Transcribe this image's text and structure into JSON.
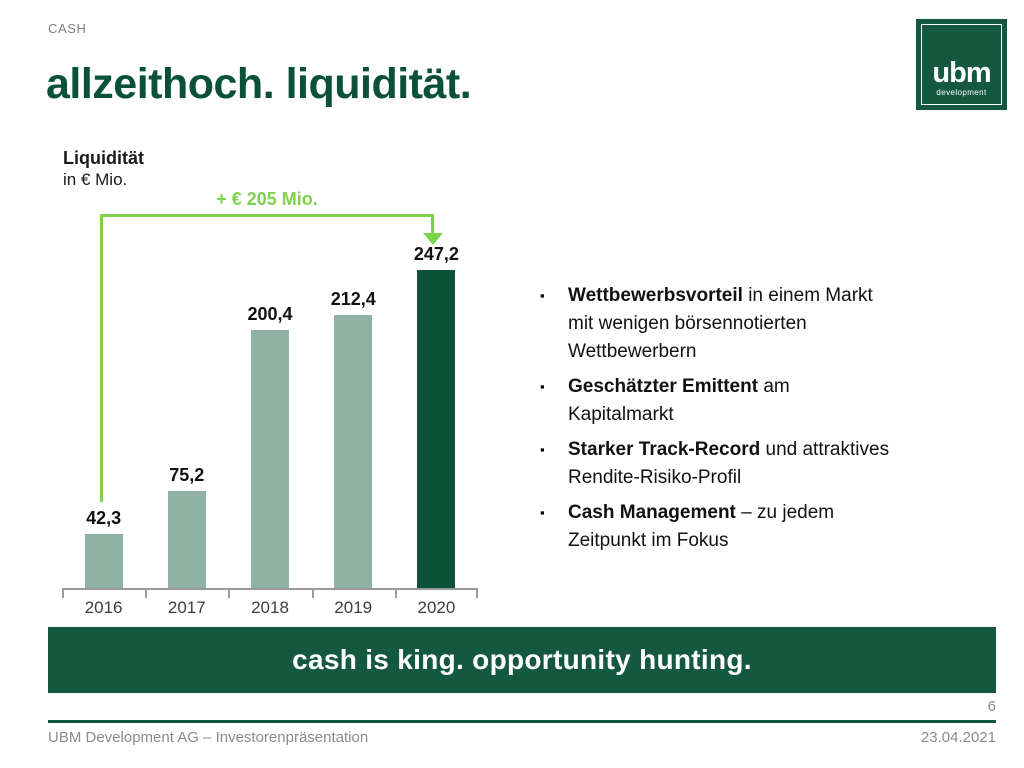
{
  "slide": {
    "eyebrow": "CASH",
    "title": "allzeithoch. liquidität.",
    "banner": "cash is king. opportunity hunting.",
    "page_number": "6",
    "footer_left": "UBM Development AG – Investorenpräsentation",
    "footer_right": "23.04.2021"
  },
  "logo": {
    "text": "ubm",
    "subtext": "development"
  },
  "chart_data": {
    "type": "bar",
    "title": "Liquidität",
    "subtitle": "in € Mio.",
    "categories": [
      "2016",
      "2017",
      "2018",
      "2019",
      "2020"
    ],
    "values": [
      42.3,
      75.2,
      200.4,
      212.4,
      247.2
    ],
    "value_labels": [
      "42,3",
      "75,2",
      "200,4",
      "212,4",
      "247,2"
    ],
    "annotation": "+ € 205 Mio.",
    "annotation_meaning": "increase from 2016 to 2020",
    "ylim": [
      0,
      260
    ],
    "grid": false,
    "legend": "none",
    "bar_color": "#8FB2A5",
    "highlight_index": 4,
    "highlight_color": "#0B5138",
    "annotation_color": "#7ED24B"
  },
  "bullets": {
    "glyph": "▪",
    "items": [
      {
        "bold": "Wettbewerbsvorteil",
        "rest": [
          " in einem Markt",
          "mit wenigen börsennotierten",
          "Wettbewerbern"
        ]
      },
      {
        "bold": "Geschätzter Emittent",
        "rest": [
          " am",
          "Kapitalmarkt"
        ]
      },
      {
        "bold": "Starker Track-Record",
        "rest": [
          " und attraktives",
          "Rendite-Risiko-Profil"
        ]
      },
      {
        "bold": "Cash Management",
        "rest": [
          " – zu jedem",
          "Zeitpunkt im Fokus"
        ]
      }
    ]
  },
  "colors": {
    "brand_dark_green": "#0B5138",
    "banner_green": "#14583F",
    "accent_green": "#7ED24B",
    "light_bar_green": "#8FB2A5",
    "gray_text": "#8A8A8A",
    "axis_gray": "#9A9A9A"
  }
}
